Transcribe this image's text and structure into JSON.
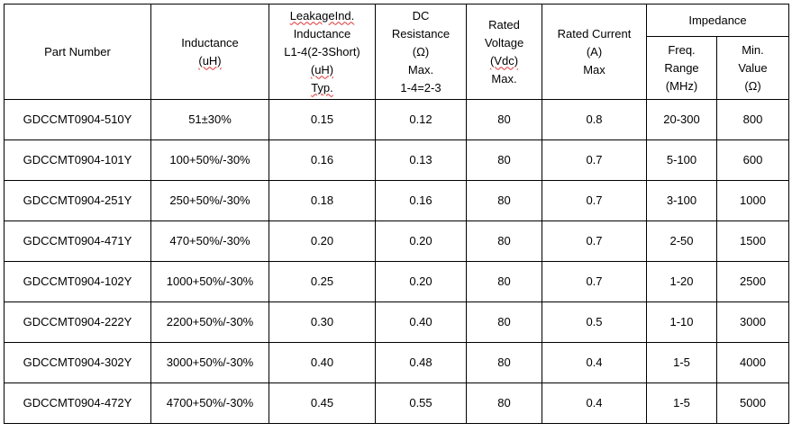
{
  "table": {
    "headers": {
      "part_number": "Part Number",
      "inductance": [
        "Inductance",
        "(uH)"
      ],
      "leakage": [
        "LeakageInd.",
        "Inductance",
        "L1-4(2-3Short)",
        "(uH)",
        "Typ."
      ],
      "dc_resistance": [
        "DC",
        "Resistance",
        "(Ω)",
        "Max.",
        "1-4=2-3"
      ],
      "rated_voltage": [
        "Rated",
        "Voltage",
        "(Vdc)",
        "Max."
      ],
      "rated_current": [
        "Rated Current",
        "(A)",
        "Max"
      ],
      "impedance": "Impedance",
      "freq_range": [
        "Freq.",
        "Range",
        "(MHz)"
      ],
      "min_value": [
        "Min.",
        "Value",
        "(Ω)"
      ]
    },
    "rows": [
      [
        "GDCCMT0904-510Y",
        "51±30%",
        "0.15",
        "0.12",
        "80",
        "0.8",
        "20-300",
        "800"
      ],
      [
        "GDCCMT0904-101Y",
        "100+50%/-30%",
        "0.16",
        "0.13",
        "80",
        "0.7",
        "5-100",
        "600"
      ],
      [
        "GDCCMT0904-251Y",
        "250+50%/-30%",
        "0.18",
        "0.16",
        "80",
        "0.7",
        "3-100",
        "1000"
      ],
      [
        "GDCCMT0904-471Y",
        "470+50%/-30%",
        "0.20",
        "0.20",
        "80",
        "0.7",
        "2-50",
        "1500"
      ],
      [
        "GDCCMT0904-102Y",
        "1000+50%/-30%",
        "0.25",
        "0.20",
        "80",
        "0.7",
        "1-20",
        "2500"
      ],
      [
        "GDCCMT0904-222Y",
        "2200+50%/-30%",
        "0.30",
        "0.40",
        "80",
        "0.5",
        "1-10",
        "3000"
      ],
      [
        "GDCCMT0904-302Y",
        "3000+50%/-30%",
        "0.40",
        "0.48",
        "80",
        "0.4",
        "1-5",
        "4000"
      ],
      [
        "GDCCMT0904-472Y",
        "4700+50%/-30%",
        "0.45",
        "0.55",
        "80",
        "0.4",
        "1-5",
        "5000"
      ]
    ]
  }
}
